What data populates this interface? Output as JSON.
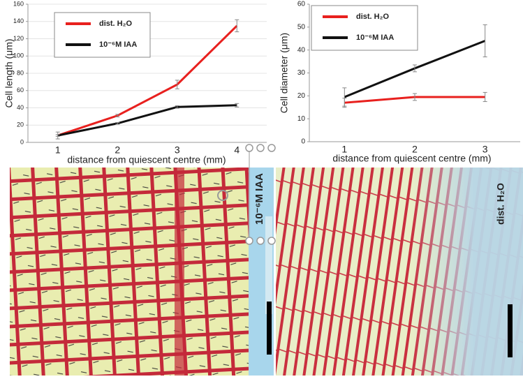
{
  "chart_data": [
    {
      "type": "line",
      "ylabel": "Cell length (μm)",
      "xlabel": "distance from quiescent centre (mm)",
      "categories": [
        "1",
        "2",
        "3",
        "4"
      ],
      "ylim": [
        0,
        160
      ],
      "yticks": [
        0,
        20,
        40,
        60,
        80,
        100,
        120,
        140,
        160
      ],
      "grid": true,
      "legend": "upper left",
      "series": [
        {
          "name": "dist. H₂O",
          "color": "#e8201e",
          "values": [
            8,
            31,
            67,
            135
          ],
          "errors": [
            4,
            1.5,
            5,
            7
          ]
        },
        {
          "name": "10⁻⁶M IAA",
          "color": "#111111",
          "values": [
            8,
            22,
            41,
            43
          ],
          "errors": [
            1,
            1,
            1.5,
            2
          ]
        }
      ]
    },
    {
      "type": "line",
      "ylabel": "Cell diameter (μm)",
      "xlabel": "distance from quiescent centre (mm)",
      "categories": [
        "1",
        "2",
        "3"
      ],
      "ylim": [
        0,
        60
      ],
      "yticks": [
        0,
        10,
        20,
        30,
        40,
        50,
        60
      ],
      "grid": false,
      "legend": "upper left",
      "series": [
        {
          "name": "dist. H₂O",
          "color": "#e8201e",
          "values": [
            17,
            19.5,
            19.5
          ],
          "errors": [
            2,
            1.5,
            2
          ]
        },
        {
          "name": "10⁻⁶M IAA",
          "color": "#111111",
          "values": [
            19.5,
            32,
            44
          ],
          "errors": [
            4,
            1.5,
            7
          ]
        }
      ]
    }
  ],
  "panels": [
    {
      "label": "10⁻⁶M IAA"
    },
    {
      "label": "dist. H₂O"
    }
  ]
}
